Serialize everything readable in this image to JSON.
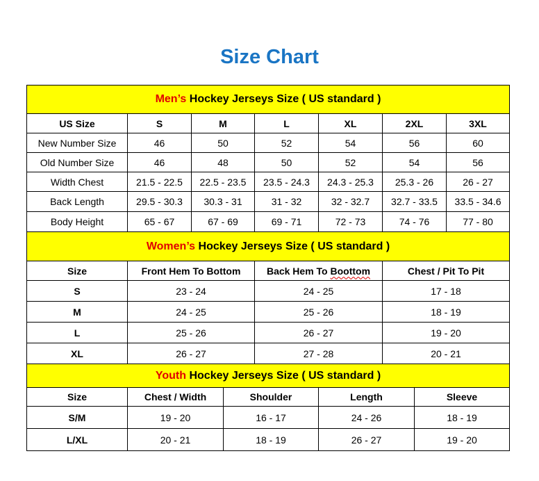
{
  "title": "Size Chart",
  "colors": {
    "title": "#1a75c4",
    "section_header_bg": "#ffff00",
    "accent_text": "#e00000"
  },
  "sections": [
    {
      "id": "men",
      "accent": "Men’s",
      "heading": " Hockey Jerseys Size ( US standard )",
      "columns": [
        "US Size",
        "S",
        "M",
        "L",
        "XL",
        "2XL",
        "3XL"
      ],
      "rows": [
        [
          "New Number Size",
          "46",
          "50",
          "52",
          "54",
          "56",
          "60"
        ],
        [
          "Old Number Size",
          "46",
          "48",
          "50",
          "52",
          "54",
          "56"
        ],
        [
          "Width Chest",
          "21.5 - 22.5",
          "22.5 - 23.5",
          "23.5 - 24.3",
          "24.3 - 25.3",
          "25.3 - 26",
          "26 - 27"
        ],
        [
          "Back Length",
          "29.5 - 30.3",
          "30.3 - 31",
          "31 - 32",
          "32 - 32.7",
          "32.7 - 33.5",
          "33.5 - 34.6"
        ],
        [
          "Body Height",
          "65 - 67",
          "67 - 69",
          "69 - 71",
          "72 - 73",
          "74 - 76",
          "77 - 80"
        ]
      ]
    },
    {
      "id": "women",
      "accent": "Women’s",
      "heading": " Hockey Jerseys Size ( US standard )",
      "columns": [
        "Size",
        "Front Hem To Bottom",
        "Back Hem To Boottom",
        "Chest / Pit To Pit"
      ],
      "rows": [
        [
          "S",
          "23 - 24",
          "24 - 25",
          "17 - 18"
        ],
        [
          "M",
          "24 - 25",
          "25 - 26",
          "18 - 19"
        ],
        [
          "L",
          "25 - 26",
          "26 - 27",
          "19 - 20"
        ],
        [
          "XL",
          "26 - 27",
          "27 - 28",
          "20 - 21"
        ]
      ]
    },
    {
      "id": "youth",
      "accent": "Youth",
      "heading": " Hockey Jerseys Size ( US standard )",
      "columns": [
        "Size",
        "Chest / Width",
        "Shoulder",
        "Length",
        "Sleeve"
      ],
      "rows": [
        [
          "S/M",
          "19 - 20",
          "16 - 17",
          "24 - 26",
          "18 - 19"
        ],
        [
          "L/XL",
          "20 - 21",
          "18 - 19",
          "26 - 27",
          "19 - 20"
        ]
      ]
    }
  ]
}
